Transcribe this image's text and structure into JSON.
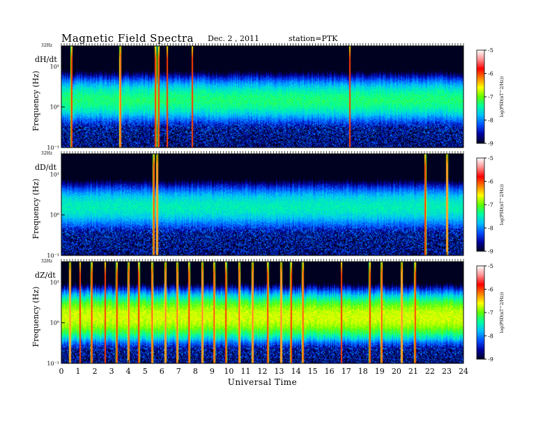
{
  "header": {
    "title": "Magnetic  Field  Spectra",
    "date": "Dec. 2  , 2011",
    "station": "station=PTK"
  },
  "chart_data": {
    "type": "heatmap",
    "title": "Magnetic  Field  Spectra",
    "xlabel": "Universal Time",
    "xlim": [
      0,
      24
    ],
    "x_ticks": [
      "0",
      "1",
      "2",
      "3",
      "4",
      "5",
      "6",
      "7",
      "8",
      "9",
      "10",
      "11",
      "12",
      "13",
      "14",
      "15",
      "16",
      "17",
      "18",
      "19",
      "20",
      "21",
      "22",
      "23",
      "24"
    ],
    "colorbar": {
      "label": "log(PSD(nT^2/Hz))",
      "range": [
        -9,
        -5
      ],
      "ticks": [
        "-5",
        "-6",
        "-7",
        "-8",
        "-9"
      ],
      "colormap": [
        "#000020",
        "#0000a0",
        "#0050ff",
        "#00c0ff",
        "#00ffa0",
        "#60ff00",
        "#ffff00",
        "#ff8000",
        "#ff0000",
        "#ff9090",
        "#ffffff"
      ]
    },
    "panels": [
      {
        "component": "dH/dt",
        "ylabel": "Frequency  (Hz)",
        "top_label": "32Hz",
        "y_ticks": [
          {
            "value": 0.1,
            "label": "10⁻¹"
          },
          {
            "value": 1,
            "label": "10⁰"
          },
          {
            "value": 10,
            "label": "10¹"
          }
        ],
        "ylim": [
          0.1,
          32
        ],
        "band_center_hz": 1.5,
        "band_peak_log_psd": -6.8,
        "bursts_ut": [
          0.6,
          3.5,
          5.6,
          5.8,
          6.3,
          7.8,
          17.2
        ]
      },
      {
        "component": "dD/dt",
        "ylabel": "Frequency  (Hz)",
        "top_label": "32Hz",
        "y_ticks": [
          {
            "value": 0.1,
            "label": "10⁻¹"
          },
          {
            "value": 1,
            "label": "10⁰"
          },
          {
            "value": 10,
            "label": "10¹"
          }
        ],
        "ylim": [
          0.1,
          32
        ],
        "band_center_hz": 1.6,
        "band_peak_log_psd": -7.0,
        "bursts_ut": [
          5.5,
          5.7,
          21.7,
          23.0
        ]
      },
      {
        "component": "dZ/dt",
        "ylabel": "Frequency  (Hz)",
        "top_label": "32Hz",
        "y_ticks": [
          {
            "value": 0.1,
            "label": "10⁻¹"
          },
          {
            "value": 1,
            "label": "10⁰"
          },
          {
            "value": 10,
            "label": "10¹"
          }
        ],
        "ylim": [
          0.1,
          32
        ],
        "band_center_hz": 1.4,
        "band_peak_log_psd": -6.2,
        "bursts_ut": [
          0.5,
          1.1,
          1.8,
          2.6,
          3.3,
          4.0,
          4.6,
          5.4,
          6.2,
          6.9,
          7.6,
          8.4,
          9.1,
          9.8,
          10.6,
          11.4,
          12.3,
          13.1,
          13.7,
          14.4,
          16.7,
          18.4,
          19.1,
          20.3,
          21.1
        ]
      }
    ]
  }
}
